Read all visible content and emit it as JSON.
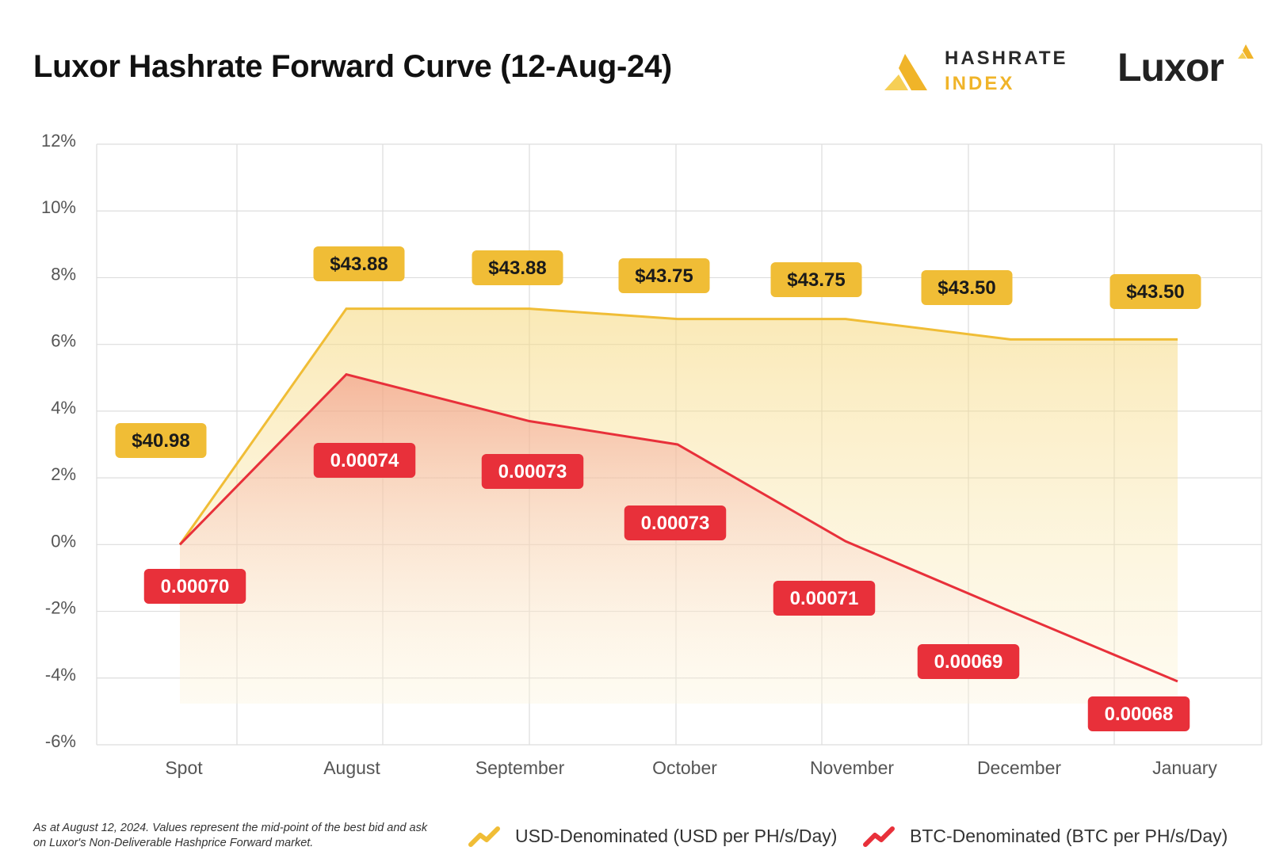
{
  "header": {
    "title": "Luxor Hashrate Forward Curve (12-Aug-24)",
    "hashrate_logo_line1": "HASHRATE",
    "hashrate_logo_line2": "INDEX",
    "luxor_logo_text": "Luxor"
  },
  "colors": {
    "usd": "#f0bd36",
    "btc": "#e8303a",
    "grid": "#dddddd",
    "axis_text": "#555555"
  },
  "chart_data": {
    "type": "area",
    "categories": [
      "Spot",
      "August",
      "September",
      "October",
      "November",
      "December",
      "January"
    ],
    "yticks": [
      "12%",
      "10%",
      "8%",
      "6%",
      "4%",
      "2%",
      "0%",
      "-2%",
      "-4%",
      "-6%"
    ],
    "ylim": [
      -6,
      12
    ],
    "grid": true,
    "legend_position": "bottom",
    "series": [
      {
        "name": "USD-Denominated (USD per PH/s/Day)",
        "values": [
          0,
          7.07,
          7.07,
          6.76,
          6.76,
          6.15,
          6.15
        ],
        "labels": [
          "$40.98",
          "$43.88",
          "$43.88",
          "$43.75",
          "$43.75",
          "$43.50",
          "$43.50"
        ]
      },
      {
        "name": "BTC-Denominated (BTC per PH/s/Day)",
        "values": [
          0,
          5.1,
          3.7,
          3.0,
          0.1,
          -2.0,
          -4.1
        ],
        "labels": [
          "0.00070",
          "0.00074",
          "0.00073",
          "0.00073",
          "0.00071",
          "0.00069",
          "0.00068"
        ]
      }
    ]
  },
  "footnote": "As at August 12, 2024. Values represent the mid-point of the best bid and ask on Luxor's Non-Deliverable Hashprice Forward market."
}
